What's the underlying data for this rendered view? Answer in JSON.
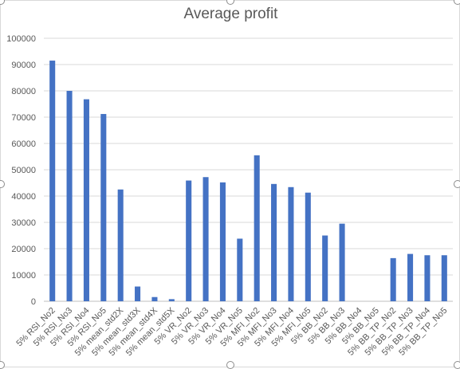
{
  "chart_data": {
    "type": "bar",
    "title": "Average profit",
    "xlabel": "",
    "ylabel": "",
    "ylim": [
      0,
      100000
    ],
    "yticks": [
      0,
      10000,
      20000,
      30000,
      40000,
      50000,
      60000,
      70000,
      80000,
      90000,
      100000
    ],
    "grid": true,
    "bar_color": "#4472c4",
    "categories": [
      "5% RSI_No2",
      "5% RSI_No3",
      "5% RSI_No4",
      "5% RSI_No5",
      "5% mean_std2X",
      "5% mean_std3X",
      "5% mean_std4X",
      "5% mean_std5X",
      "5% VR_No2",
      "5% VR_No3",
      "5% VR_No4",
      "5% VR_No5",
      "5% MFI_No2",
      "5% MFI_No3",
      "5% MFI_No4",
      "5% MFI_No5",
      "5% BB_No2",
      "5% BB_No3",
      "5% BB_No4",
      "5% BB_No5",
      "5% BB_TP_No2",
      "5% BB_TP_No3",
      "5% BB_TP_No4",
      "5% BB_TP_No5"
    ],
    "values": [
      91500,
      80000,
      76800,
      71200,
      42500,
      5600,
      1600,
      800,
      45900,
      47200,
      45200,
      23800,
      55500,
      44600,
      43400,
      41300,
      25000,
      29500,
      0,
      0,
      16400,
      18000,
      17500,
      17500
    ]
  }
}
